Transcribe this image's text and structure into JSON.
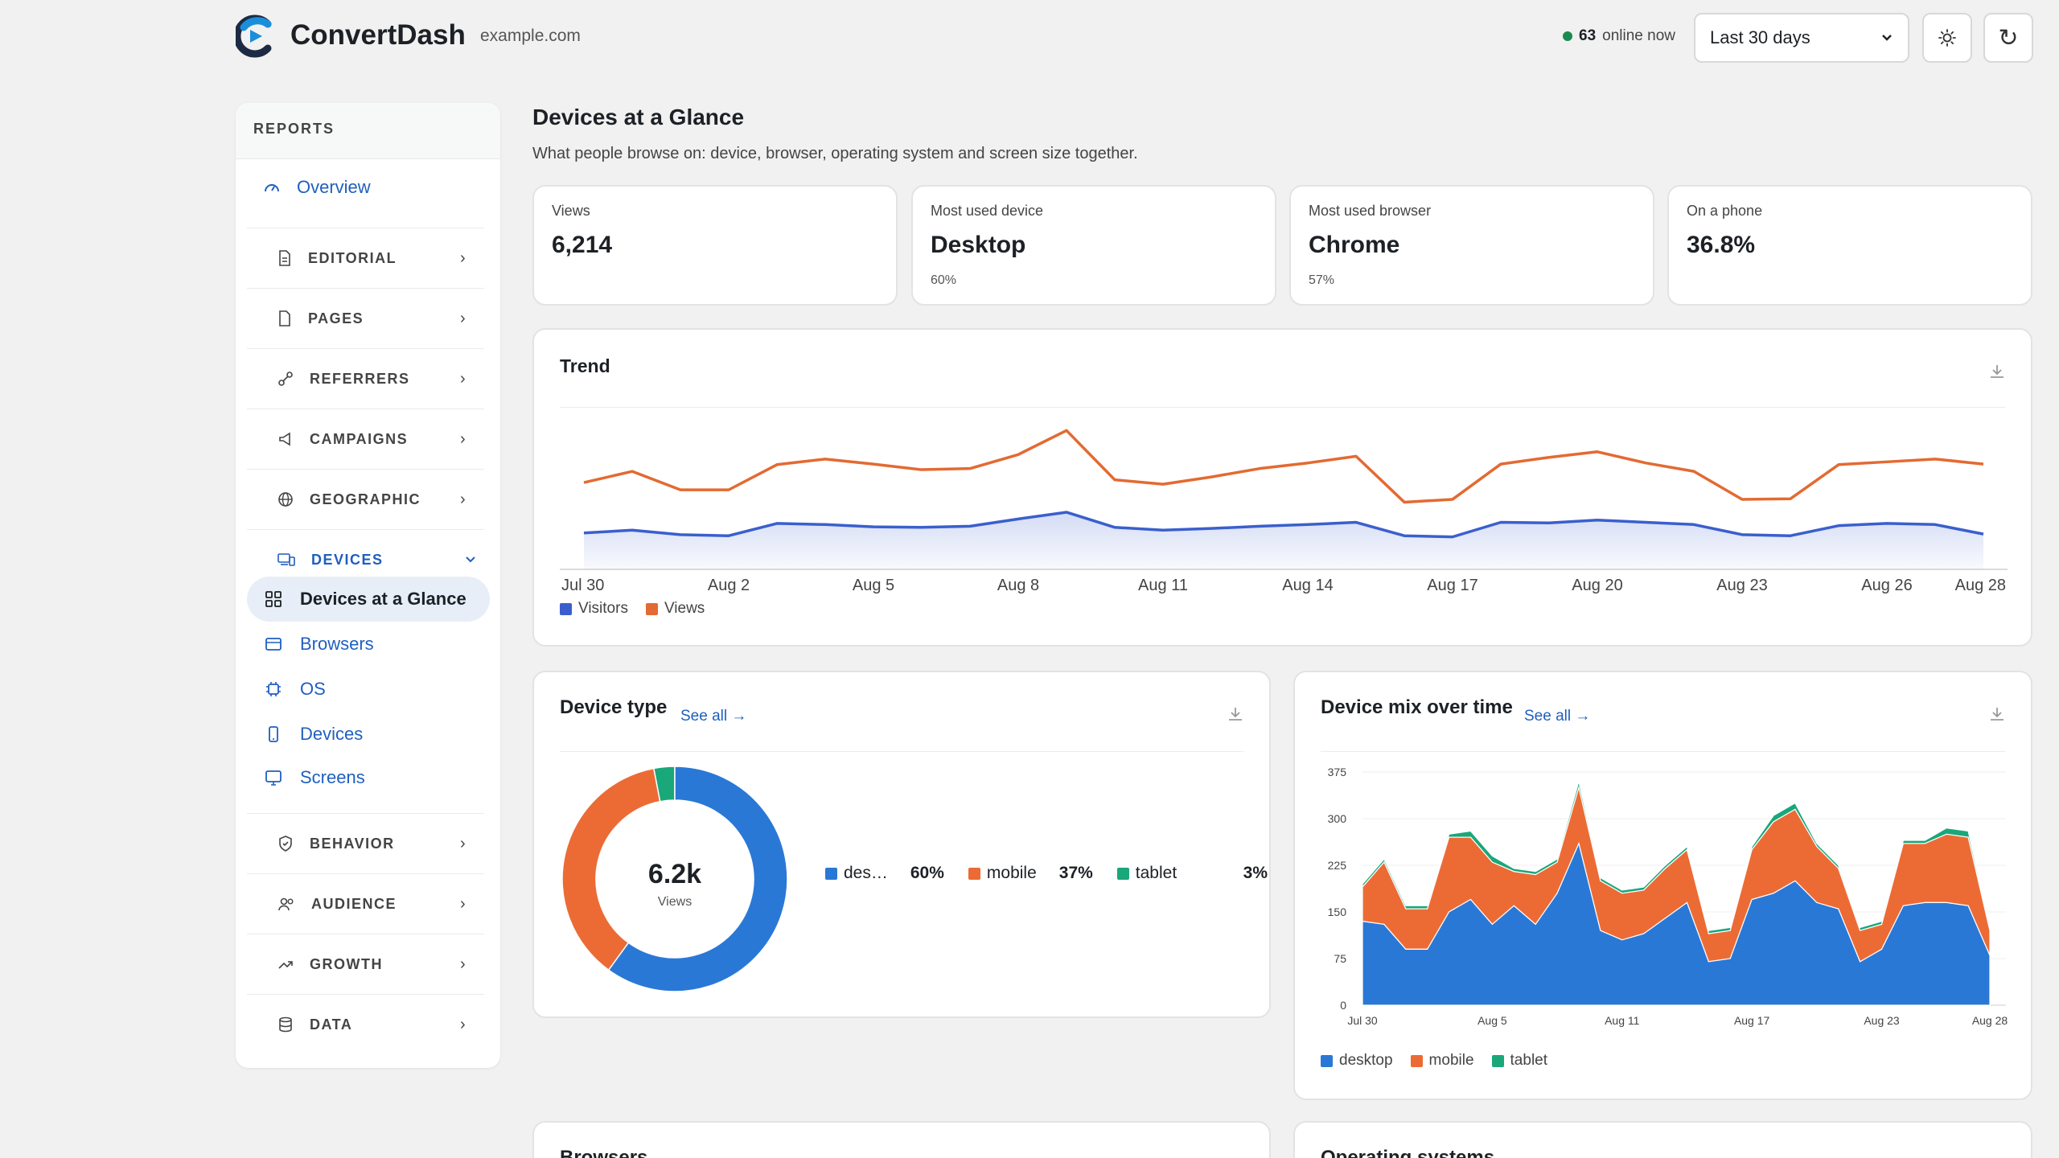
{
  "header": {
    "brand": "ConvertDash",
    "domain": "example.com",
    "online_count": "63",
    "online_label": "online now",
    "range": "Last 30 days",
    "theme_icon": "sun-icon",
    "refresh_icon": "refresh-icon"
  },
  "sidebar": {
    "heading": "REPORTS",
    "overview": "Overview",
    "sections": [
      {
        "label": "EDITORIAL",
        "icon": "document-icon"
      },
      {
        "label": "PAGES",
        "icon": "page-icon"
      },
      {
        "label": "REFERRERS",
        "icon": "link-icon"
      },
      {
        "label": "CAMPAIGNS",
        "icon": "megaphone-icon"
      },
      {
        "label": "GEOGRAPHIC",
        "icon": "globe-icon"
      },
      {
        "label": "DEVICES",
        "icon": "devices-icon"
      },
      {
        "label": "BEHAVIOR",
        "icon": "shield-icon"
      },
      {
        "label": "AUDIENCE",
        "icon": "users-icon"
      },
      {
        "label": "GROWTH",
        "icon": "trend-icon"
      },
      {
        "label": "DATA",
        "icon": "database-icon"
      }
    ],
    "device_items": [
      {
        "label": "Devices at a Glance",
        "icon": "grid-icon"
      },
      {
        "label": "Browsers",
        "icon": "browser-icon"
      },
      {
        "label": "OS",
        "icon": "chip-icon"
      },
      {
        "label": "Devices",
        "icon": "phone-icon"
      },
      {
        "label": "Screens",
        "icon": "monitor-icon"
      }
    ]
  },
  "page": {
    "title": "Devices at a Glance",
    "subtitle": "What people browse on: device, browser, operating system and screen size together."
  },
  "stats": [
    {
      "label": "Views",
      "value": "6,214",
      "sub": ""
    },
    {
      "label": "Most used device",
      "value": "Desktop",
      "sub": "60%"
    },
    {
      "label": "Most used browser",
      "value": "Chrome",
      "sub": "57%"
    },
    {
      "label": "On a phone",
      "value": "36.8%",
      "sub": ""
    }
  ],
  "cards": {
    "trend_title": "Trend",
    "device_type_title": "Device type",
    "device_mix_title": "Device mix over time",
    "see_all": "See all →",
    "browsers_title": "Browsers",
    "os_title": "Operating systems",
    "donut_center": "6.2k",
    "donut_center_label": "Views"
  },
  "colors": {
    "accent": "#1f5fbf",
    "visitors": "#3a5fcd",
    "views": "#e36a32",
    "desktop": "#2a78d6",
    "mobile": "#ec6b35",
    "tablet": "#1aa77a"
  },
  "chart_data": [
    {
      "type": "line",
      "title": "Trend",
      "x": [
        "Jul 30",
        "Jul 31",
        "Aug 1",
        "Aug 2",
        "Aug 3",
        "Aug 4",
        "Aug 5",
        "Aug 6",
        "Aug 7",
        "Aug 8",
        "Aug 9",
        "Aug 10",
        "Aug 11",
        "Aug 12",
        "Aug 13",
        "Aug 14",
        "Aug 15",
        "Aug 16",
        "Aug 17",
        "Aug 18",
        "Aug 19",
        "Aug 20",
        "Aug 21",
        "Aug 22",
        "Aug 23",
        "Aug 24",
        "Aug 25",
        "Aug 26",
        "Aug 27",
        "Aug 28"
      ],
      "xticks": [
        "Jul 30",
        "Aug 2",
        "Aug 5",
        "Aug 8",
        "Aug 11",
        "Aug 14",
        "Aug 17",
        "Aug 20",
        "Aug 23",
        "Aug 26",
        "Aug 28"
      ],
      "series": [
        {
          "name": "Visitors",
          "values": [
            65,
            70,
            62,
            60,
            82,
            80,
            76,
            75,
            77,
            90,
            102,
            75,
            70,
            73,
            77,
            80,
            84,
            60,
            58,
            84,
            83,
            88,
            84,
            80,
            62,
            60,
            78,
            82,
            80,
            63
          ]
        },
        {
          "name": "Views",
          "values": [
            155,
            175,
            142,
            142,
            187,
            197,
            188,
            178,
            180,
            205,
            248,
            160,
            152,
            165,
            180,
            190,
            202,
            120,
            125,
            188,
            200,
            210,
            190,
            175,
            125,
            126,
            187,
            192,
            197,
            188
          ]
        }
      ],
      "ylim": [
        0,
        270
      ],
      "legend": "bottom-left",
      "grid": false
    },
    {
      "type": "pie",
      "title": "Device type",
      "categories": [
        "desktop",
        "mobile",
        "tablet"
      ],
      "legend_labels": [
        "des…",
        "mobile",
        "tablet"
      ],
      "values": [
        60,
        37,
        3
      ],
      "value_labels": [
        "60%",
        "37%",
        "3%"
      ]
    },
    {
      "type": "area",
      "title": "Device mix over time",
      "x": [
        "Jul 30",
        "Jul 31",
        "Aug 1",
        "Aug 2",
        "Aug 3",
        "Aug 4",
        "Aug 5",
        "Aug 6",
        "Aug 7",
        "Aug 8",
        "Aug 9",
        "Aug 10",
        "Aug 11",
        "Aug 12",
        "Aug 13",
        "Aug 14",
        "Aug 15",
        "Aug 16",
        "Aug 17",
        "Aug 18",
        "Aug 19",
        "Aug 20",
        "Aug 21",
        "Aug 22",
        "Aug 23",
        "Aug 24",
        "Aug 25",
        "Aug 26",
        "Aug 27",
        "Aug 28"
      ],
      "xticks": [
        "Jul 30",
        "Aug 5",
        "Aug 11",
        "Aug 17",
        "Aug 23",
        "Aug 28"
      ],
      "yticks": [
        0,
        75,
        150,
        225,
        300,
        375
      ],
      "ylim": [
        0,
        375
      ],
      "stacked": true,
      "series": [
        {
          "name": "desktop",
          "values": [
            135,
            130,
            90,
            90,
            150,
            170,
            130,
            160,
            130,
            180,
            260,
            120,
            105,
            115,
            140,
            165,
            70,
            75,
            170,
            180,
            200,
            165,
            155,
            70,
            90,
            160,
            165,
            165,
            160,
            80
          ]
        },
        {
          "name": "mobile",
          "values": [
            55,
            100,
            65,
            65,
            120,
            100,
            100,
            55,
            80,
            50,
            90,
            80,
            75,
            70,
            80,
            85,
            45,
            45,
            80,
            115,
            115,
            90,
            65,
            50,
            40,
            100,
            95,
            110,
            110,
            40
          ]
        },
        {
          "name": "tablet",
          "values": [
            5,
            5,
            5,
            5,
            5,
            10,
            10,
            5,
            5,
            5,
            10,
            5,
            5,
            5,
            5,
            5,
            5,
            5,
            5,
            10,
            10,
            5,
            5,
            5,
            5,
            5,
            5,
            10,
            10,
            5
          ]
        }
      ],
      "legend": "bottom-left",
      "grid": true
    }
  ]
}
